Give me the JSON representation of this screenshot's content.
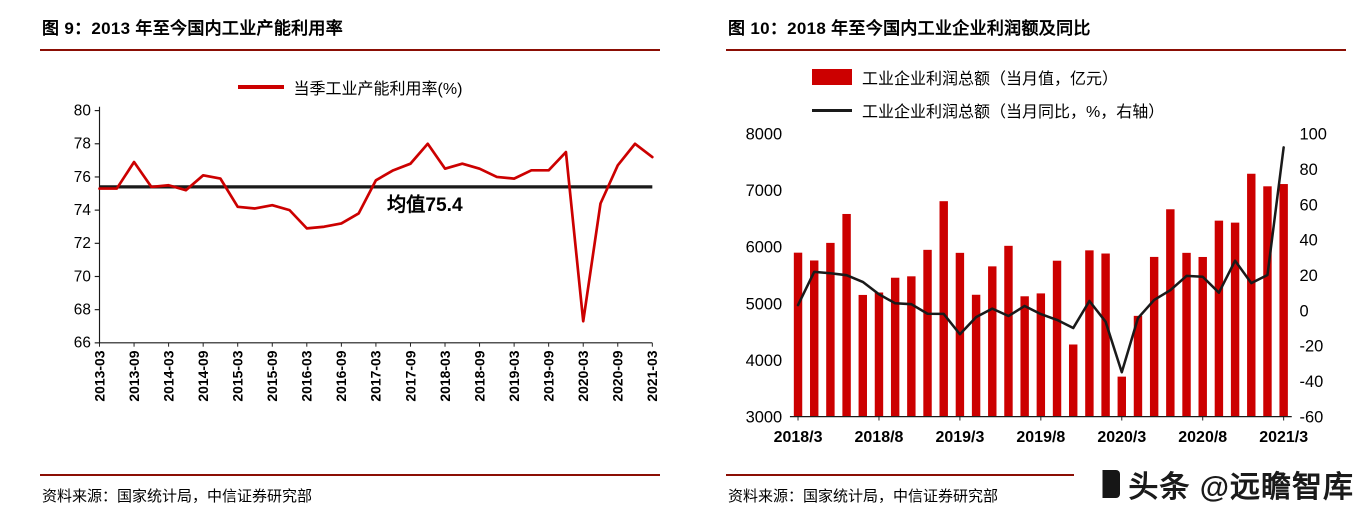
{
  "page": {
    "watermark_text": "头条 @远瞻智库"
  },
  "colors": {
    "series_red": "#CC0000",
    "rule_dark_red": "#8B0E04",
    "line_black": "#1A1A1A"
  },
  "left_panel": {
    "title": "图 9：2013 年至今国内工业产能利用率",
    "legend": "当季工业产能利用率(%)",
    "source": "资料来源：国家统计局，中信证券研究部"
  },
  "right_panel": {
    "title": "图 10：2018 年至今国内工业企业利润额及同比",
    "legend_bar": "工业企业利润总额（当月值，亿元）",
    "legend_line": "工业企业利润总额（当月同比，%，右轴）",
    "source": "资料来源：国家统计局，中信证券研究部"
  },
  "chart_data": [
    {
      "type": "line",
      "title": "图 9：2013 年至今国内工业产能利用率",
      "legend": [
        "当季工业产能利用率(%)"
      ],
      "x": [
        "2013-03",
        "2013-06",
        "2013-09",
        "2013-12",
        "2014-03",
        "2014-06",
        "2014-09",
        "2014-12",
        "2015-03",
        "2015-06",
        "2015-09",
        "2015-12",
        "2016-03",
        "2016-06",
        "2016-09",
        "2016-12",
        "2017-03",
        "2017-06",
        "2017-09",
        "2017-12",
        "2018-03",
        "2018-06",
        "2018-09",
        "2018-12",
        "2019-03",
        "2019-06",
        "2019-09",
        "2019-12",
        "2020-03",
        "2020-06",
        "2020-09",
        "2020-12",
        "2021-03"
      ],
      "values": [
        75.3,
        75.3,
        76.9,
        75.4,
        75.5,
        75.2,
        76.1,
        75.9,
        74.2,
        74.1,
        74.3,
        74.0,
        72.9,
        73.0,
        73.2,
        73.8,
        75.8,
        76.4,
        76.8,
        78.0,
        76.5,
        76.8,
        76.5,
        76.0,
        75.9,
        76.4,
        76.4,
        77.5,
        67.3,
        74.4,
        76.7,
        78.0,
        77.2
      ],
      "mean": 75.4,
      "mean_label": "均值75.4",
      "ylim": [
        66,
        80
      ],
      "yticks": [
        66,
        68,
        70,
        72,
        74,
        76,
        78,
        80
      ],
      "x_label_every": 2,
      "grid": false,
      "legend_position": "top",
      "series_color": "#CC0000"
    },
    {
      "type": "bar+line",
      "title": "图 10：2018 年至今国内工业企业利润额及同比",
      "x": [
        "2018/3",
        "2018/4",
        "2018/5",
        "2018/6",
        "2018/7",
        "2018/8",
        "2018/9",
        "2018/10",
        "2018/11",
        "2018/12",
        "2019/3",
        "2019/4",
        "2019/5",
        "2019/6",
        "2019/7",
        "2019/8",
        "2019/9",
        "2019/10",
        "2019/11",
        "2019/12",
        "2020/3",
        "2020/4",
        "2020/5",
        "2020/6",
        "2020/7",
        "2020/8",
        "2020/9",
        "2020/10",
        "2020/11",
        "2020/12",
        "2021/3"
      ],
      "series": [
        {
          "name": "工业企业利润总额（当月值，亿元）",
          "type": "bar",
          "axis": "left",
          "values": [
            5898,
            5760,
            6071,
            6582,
            5151,
            5194,
            5455,
            5480,
            5948,
            6808,
            5895,
            5154,
            5656,
            6019,
            5127,
            5178,
            5756,
            4275,
            5939,
            5883,
            3707,
            4781,
            5823,
            6665,
            5895,
            5822,
            6464,
            6429,
            7293,
            7071,
            7111
          ]
        },
        {
          "name": "工业企业利润总额（当月同比，%，右轴）",
          "type": "line",
          "axis": "right",
          "values": [
            3.1,
            21.9,
            21.1,
            20.0,
            16.2,
            9.2,
            4.1,
            3.6,
            -1.8,
            -1.9,
            -13.4,
            -3.7,
            1.1,
            -3.1,
            2.6,
            -2.0,
            -5.3,
            -9.9,
            5.4,
            -6.3,
            -34.9,
            -4.3,
            6.0,
            11.5,
            19.6,
            19.1,
            10.1,
            28.2,
            15.5,
            20.1,
            92.3
          ]
        }
      ],
      "left_ylim": [
        3000,
        8000
      ],
      "left_yticks": [
        3000,
        4000,
        5000,
        6000,
        7000,
        8000
      ],
      "right_ylim": [
        -60,
        100
      ],
      "right_yticks": [
        -60,
        -40,
        -20,
        0,
        20,
        40,
        60,
        80,
        100
      ],
      "x_tick_labels": [
        "2018/3",
        "2018/8",
        "2019/3",
        "2019/8",
        "2020/3",
        "2020/8",
        "2021/3"
      ],
      "x_tick_indices": [
        0,
        5,
        10,
        15,
        20,
        25,
        30
      ],
      "grid": false,
      "bar_color": "#CC0000",
      "line_color": "#1A1A1A"
    }
  ]
}
